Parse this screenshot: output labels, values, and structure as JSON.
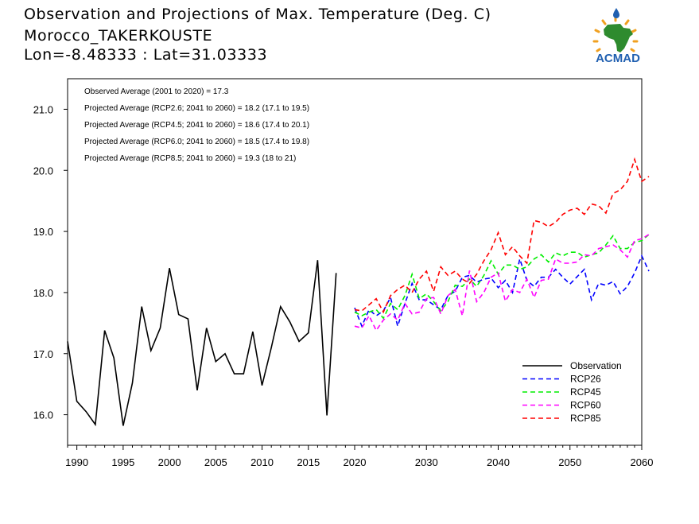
{
  "header": {
    "title": "Observation and Projections of Max. Temperature (Deg. C)",
    "station": "Morocco_TAKERKOUSTE",
    "coords": "Lon=-8.48333 : Lat=31.03333"
  },
  "logo": {
    "text": "ACMAD",
    "colors": {
      "text": "#1f5fb0",
      "map": "#2e8b2e",
      "rays": "#f0a020",
      "drop": "#1f5fb0"
    }
  },
  "annotations": [
    "Observed Average (2001 to 2020) = 17.3",
    "Projected Average (RCP2.6; 2041 to 2060) = 18.2 (17.1 to 19.5)",
    "Projected Average (RCP4.5; 2041 to 2060) = 18.6 (17.4 to 20.1)",
    "Projected Average (RCP6.0; 2041 to 2060) = 18.5 (17.4 to 19.8)",
    "Projected Average (RCP8.5; 2041 to 2060) = 19.3 (18 to 21)"
  ],
  "chart_data": {
    "type": "line",
    "xlim": [
      1989,
      2060
    ],
    "ylim": [
      15.5,
      21.5
    ],
    "x_ticks": [
      1990,
      1995,
      2000,
      2005,
      2010,
      2015,
      2020,
      2030,
      2040,
      2050,
      2060
    ],
    "y_ticks": [
      "16.0",
      "17.0",
      "18.0",
      "19.0",
      "20.0",
      "21.0"
    ],
    "legend_position": "bottom-right",
    "series": [
      {
        "name": "Observation",
        "color": "#000000",
        "dashed": false,
        "x_start": 1989,
        "values": [
          17.2,
          16.22,
          16.05,
          15.84,
          17.38,
          16.93,
          15.82,
          16.52,
          17.77,
          17.05,
          17.42,
          18.4,
          17.64,
          17.57,
          16.4,
          17.42,
          16.87,
          17.0,
          16.67,
          16.67,
          17.36,
          16.48,
          17.1,
          17.77,
          17.52,
          17.2,
          17.34,
          18.53,
          15.99,
          18.32
        ]
      },
      {
        "name": "RCP26",
        "color": "#0000ff",
        "dashed": true,
        "x_start": 2020,
        "values": [
          17.75,
          17.45,
          17.72,
          17.62,
          17.7,
          17.92,
          17.45,
          17.82,
          18.15,
          17.88,
          17.88,
          17.8,
          17.72,
          17.95,
          18.02,
          18.25,
          18.28,
          18.17,
          18.22,
          18.24,
          18.08,
          18.2,
          18.0,
          18.55,
          18.2,
          18.1,
          18.25,
          18.25,
          18.38,
          18.25,
          18.14,
          18.26,
          18.38,
          17.88,
          18.15,
          18.12,
          18.18,
          17.98,
          18.1,
          18.32,
          18.6,
          18.35
        ]
      },
      {
        "name": "RCP45",
        "color": "#00ee00",
        "dashed": true,
        "x_start": 2020,
        "values": [
          17.68,
          17.62,
          17.68,
          17.72,
          17.58,
          17.82,
          17.72,
          17.95,
          18.3,
          17.9,
          17.98,
          17.85,
          17.7,
          17.85,
          18.12,
          18.1,
          18.22,
          18.1,
          18.28,
          18.52,
          18.3,
          18.45,
          18.45,
          18.38,
          18.42,
          18.55,
          18.62,
          18.5,
          18.65,
          18.6,
          18.66,
          18.66,
          18.58,
          18.62,
          18.65,
          18.78,
          18.93,
          18.72,
          18.72,
          18.82,
          18.85,
          18.95
        ]
      },
      {
        "name": "RCP60",
        "color": "#ff00ff",
        "dashed": true,
        "x_start": 2020,
        "values": [
          17.45,
          17.42,
          17.62,
          17.38,
          17.55,
          17.65,
          17.55,
          17.82,
          17.65,
          17.68,
          17.9,
          17.92,
          17.65,
          17.95,
          18.05,
          17.62,
          18.36,
          17.85,
          18.0,
          18.25,
          18.32,
          17.86,
          18.05,
          18.0,
          18.22,
          17.92,
          18.2,
          18.22,
          18.55,
          18.48,
          18.48,
          18.5,
          18.62,
          18.6,
          18.72,
          18.75,
          18.78,
          18.7,
          18.58,
          18.85,
          18.88,
          18.95
        ]
      },
      {
        "name": "RCP85",
        "color": "#ff0000",
        "dashed": true,
        "x_start": 2020,
        "values": [
          17.72,
          17.7,
          17.8,
          17.9,
          17.68,
          17.95,
          18.05,
          18.12,
          18.0,
          18.22,
          18.35,
          18.02,
          18.42,
          18.28,
          18.35,
          18.22,
          18.15,
          18.3,
          18.52,
          18.7,
          18.98,
          18.62,
          18.75,
          18.6,
          18.48,
          19.18,
          19.15,
          19.08,
          19.15,
          19.28,
          19.35,
          19.38,
          19.28,
          19.45,
          19.42,
          19.3,
          19.62,
          19.68,
          19.82,
          20.18,
          19.82,
          19.9
        ]
      }
    ]
  }
}
